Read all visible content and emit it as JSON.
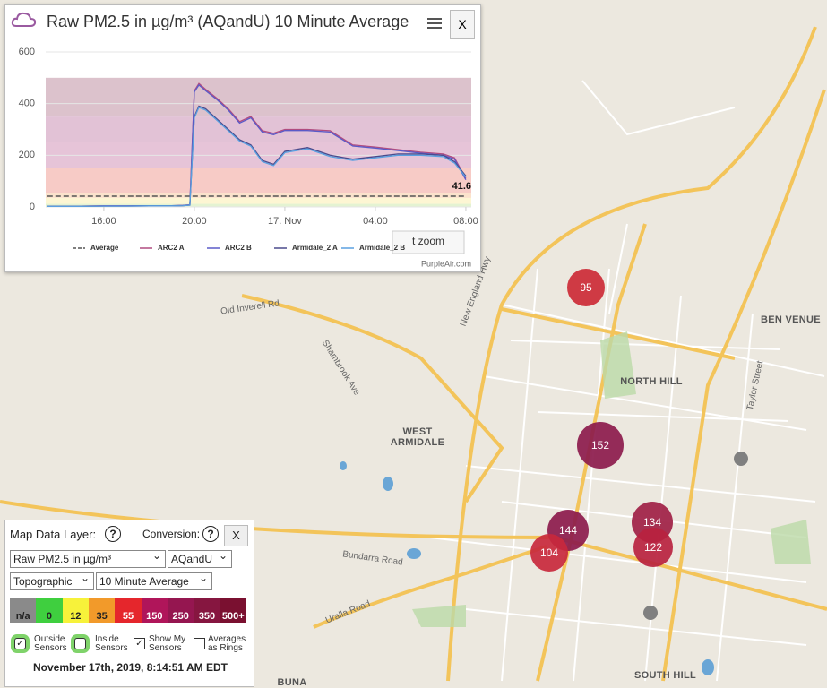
{
  "popup": {
    "title": "Raw PM2.5 in µg/m³ (AQandU) 10 Minute Average",
    "close": "X",
    "reset_zoom": "t zoom",
    "credit": "PurpleAir.com",
    "chart_data": {
      "type": "line",
      "annotation": "41.6",
      "x": [
        13.5,
        14,
        15,
        16,
        17,
        18,
        19,
        19.5,
        19.8,
        20,
        20.2,
        20.5,
        21,
        21.5,
        22,
        22.5,
        23,
        23.5,
        24,
        25,
        26,
        27,
        28,
        29,
        30,
        31,
        31.5,
        32
      ],
      "xlim": [
        13.43,
        32.24
      ],
      "xticks": [
        {
          "value": 16,
          "label": "16:00"
        },
        {
          "value": 20,
          "label": "20:00"
        },
        {
          "value": 24,
          "label": "17. Nov"
        },
        {
          "value": 28,
          "label": "04:00"
        },
        {
          "value": 32,
          "label": "08:00"
        }
      ],
      "ylim": [
        0,
        600
      ],
      "yticks": [
        0,
        200,
        400,
        600
      ],
      "grid": true,
      "bands": [
        {
          "from": 0,
          "to": 12,
          "color": "#e4f3d2"
        },
        {
          "from": 12,
          "to": 35,
          "color": "#fdf6d3"
        },
        {
          "from": 35,
          "to": 55,
          "color": "#fbe2cc"
        },
        {
          "from": 55,
          "to": 150,
          "color": "#f7cbc6"
        },
        {
          "from": 150,
          "to": 250,
          "color": "#e6c4d8"
        },
        {
          "from": 250,
          "to": 350,
          "color": "#e2c2d6"
        },
        {
          "from": 350,
          "to": 500,
          "color": "#dcc2cc"
        }
      ],
      "series": [
        {
          "name": "Average",
          "color": "#555555",
          "dashed": true,
          "values": [
            41.6,
            41.6,
            41.6,
            41.6,
            41.6,
            41.6,
            41.6,
            41.6,
            41.6,
            41.6,
            41.6,
            41.6,
            41.6,
            41.6,
            41.6,
            41.6,
            41.6,
            41.6,
            41.6,
            41.6,
            41.6,
            41.6,
            41.6,
            41.6,
            41.6,
            41.6,
            41.6,
            41.6
          ]
        },
        {
          "name": "ARC2 A",
          "color": "#b04c80",
          "values": [
            3,
            3,
            3,
            4,
            4,
            5,
            5,
            6,
            8,
            450,
            478,
            455,
            420,
            380,
            330,
            350,
            295,
            285,
            300,
            300,
            295,
            240,
            232,
            222,
            212,
            205,
            190,
            110
          ]
        },
        {
          "name": "ARC2 B",
          "color": "#5a5ac8",
          "values": [
            3,
            3,
            3,
            4,
            4,
            5,
            5,
            6,
            8,
            445,
            472,
            450,
            415,
            375,
            325,
            345,
            290,
            280,
            296,
            296,
            290,
            236,
            228,
            218,
            208,
            200,
            185,
            105
          ]
        },
        {
          "name": "Armidale_2 A",
          "color": "#4a4a8c",
          "values": [
            2,
            2,
            2,
            3,
            3,
            4,
            4,
            5,
            7,
            350,
            390,
            380,
            340,
            300,
            260,
            240,
            180,
            165,
            215,
            230,
            200,
            185,
            195,
            205,
            205,
            200,
            175,
            120
          ]
        },
        {
          "name": "Armidale_2 B",
          "color": "#5aa0e0",
          "values": [
            2,
            2,
            2,
            3,
            3,
            4,
            4,
            5,
            7,
            345,
            385,
            375,
            335,
            295,
            255,
            235,
            175,
            160,
            210,
            225,
            195,
            180,
            190,
            200,
            200,
            195,
            170,
            115
          ]
        }
      ]
    }
  },
  "map": {
    "places": [
      "NORTH HILL",
      "BEN VENUE",
      "WEST ARMIDALE",
      "SOUTH HILL",
      "BUNA VISTA"
    ],
    "roads": [
      "Old Inverell Rd",
      "Bundarra Road",
      "Uralla Road",
      "Shambrook Ave",
      "New England Hwy",
      "Taylor Street"
    ],
    "sensors": [
      {
        "label": 95,
        "color": "#cc2a36"
      },
      {
        "label": 152,
        "color": "#8c1a4c"
      },
      {
        "label": 144,
        "color": "#8c1a4c"
      },
      {
        "label": 104,
        "color": "#c8283c"
      },
      {
        "label": 134,
        "color": "#a01f45"
      },
      {
        "label": 122,
        "color": "#b8223f"
      }
    ]
  },
  "panel": {
    "layer_label": "Map Data Layer:",
    "help": "?",
    "conversion_label": "Conversion:",
    "close": "X",
    "layer_select": "Raw PM2.5 in µg/m³",
    "conversion_select": "AQandU",
    "map_select": "Topographic",
    "average_select": "10 Minute Average",
    "color_scale": [
      {
        "label": "n/a",
        "color": "#8a8a8a"
      },
      {
        "label": 0,
        "color": "#3fcf3f"
      },
      {
        "label": 12,
        "color": "#f7f23a"
      },
      {
        "label": 35,
        "color": "#f29a2a"
      },
      {
        "label": 55,
        "color": "#e5262c"
      },
      {
        "label": 150,
        "color": "#b0155a"
      },
      {
        "label": 250,
        "color": "#951650"
      },
      {
        "label": 350,
        "color": "#861640"
      },
      {
        "label": "500+",
        "color": "#7a1030"
      }
    ],
    "checks": [
      "Outside Sensors",
      "Inside Sensors",
      "Show My Sensors",
      "Averages as Rings"
    ],
    "timestamp": "November 17th, 2019, 8:14:51 AM EDT"
  }
}
